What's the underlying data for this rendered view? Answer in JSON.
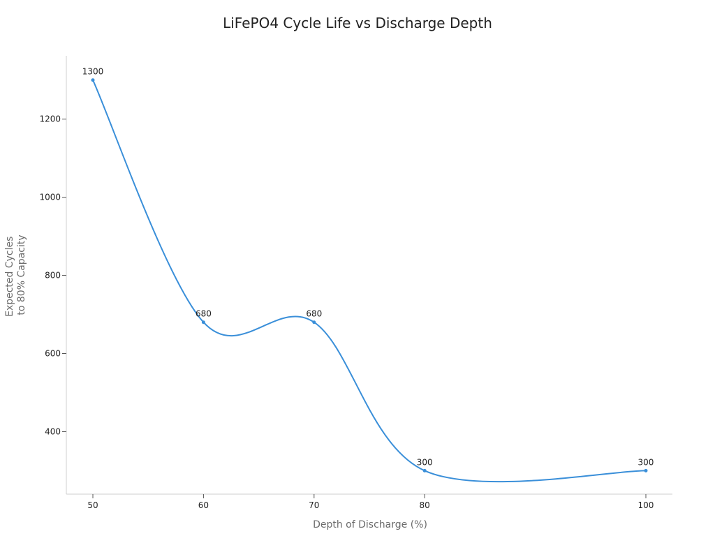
{
  "chart_data": {
    "type": "line",
    "title": "LiFePO4 Cycle Life vs Discharge Depth",
    "xlabel": "Depth of Discharge (%)",
    "ylabel_lines": [
      "Expected Cycles",
      "to 80% Capacity"
    ],
    "x": [
      50,
      60,
      70,
      80,
      100
    ],
    "x_ticks": [
      50,
      60,
      70,
      80,
      100
    ],
    "y_ticks": [
      400,
      600,
      800,
      1000,
      1200
    ],
    "xlim": [
      47.6,
      102.4
    ],
    "ylim": [
      240,
      1362
    ],
    "series": [
      {
        "values": [
          1300,
          680,
          680,
          300,
          300
        ],
        "color": "#3a8fd9"
      }
    ],
    "data_labels": [
      "1300",
      "680",
      "680",
      "300",
      "300"
    ],
    "grid": false,
    "legend": "none",
    "smooth": true
  }
}
